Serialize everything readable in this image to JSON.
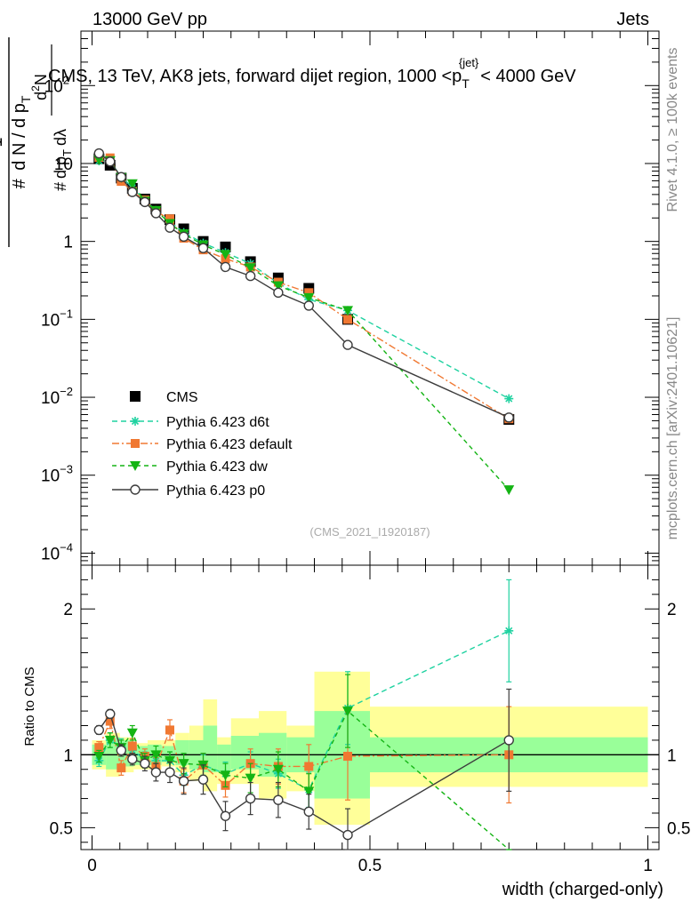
{
  "header": {
    "energy": "13000 GeV pp",
    "process": "Jets"
  },
  "side": {
    "rivet": "Rivet 4.1.0, ≥ 100k events",
    "mcplots": "mcplots.cern.ch [arXiv:2401.10621]"
  },
  "chart_data": {
    "type": "line",
    "title": "CMS, 13 TeV, AK8 jets, forward dijet region, 1000 <p_T^{jet}< 4000 GeV",
    "title_parts": {
      "main": "CMS, 13 TeV, AK8 jets, forward dijet region, 1000 <p",
      "sub": "T",
      "sup": "{jet}",
      "tail": "< 4000 GeV"
    },
    "ylabel_parts": {
      "hash": "#",
      "one": "1",
      "dN": "d N / d p",
      "sub": "T",
      "top_hash": "#",
      "top": "d",
      "top_sup": "2",
      "top_N": "N",
      "bot_dp": "d p",
      "bot_sub": "T",
      "bot_dl": "dλ"
    },
    "xlabel": "width (charged-only)",
    "ratio_ylabel": "Ratio to CMS",
    "dataset_id": "(CMS_2021_I1920187)",
    "xlim": [
      -0.02,
      1.02
    ],
    "main_ylim": [
      7e-05,
      500
    ],
    "ratio_ylim": [
      0.35,
      2.3
    ],
    "x_ticks": [
      "0",
      "0.5",
      "1"
    ],
    "x_tick_values": [
      0,
      0.5,
      1
    ],
    "main_y_ticks": [
      {
        "v": 100,
        "label": "10",
        "sup": "2"
      },
      {
        "v": 10,
        "label": "10",
        "sup": ""
      },
      {
        "v": 1,
        "label": "1",
        "sup": ""
      },
      {
        "v": 0.1,
        "label": "10",
        "sup": "−1"
      },
      {
        "v": 0.01,
        "label": "10",
        "sup": "−2"
      },
      {
        "v": 0.001,
        "label": "10",
        "sup": "−3"
      },
      {
        "v": 0.0001,
        "label": "10",
        "sup": "−4"
      }
    ],
    "ratio_y_ticks": [
      {
        "v": 2,
        "label": "2"
      },
      {
        "v": 1,
        "label": "1"
      },
      {
        "v": 0.5,
        "label": "0.5"
      }
    ],
    "bin_edges": [
      0,
      0.025,
      0.05,
      0.075,
      0.1,
      0.125,
      0.15,
      0.175,
      0.2,
      0.225,
      0.25,
      0.3,
      0.35,
      0.4,
      0.5,
      1.0
    ],
    "bin_centers": [
      0.0125,
      0.0375,
      0.0625,
      0.0875,
      0.1125,
      0.1375,
      0.1625,
      0.1875,
      0.2125,
      0.2375,
      0.275,
      0.325,
      0.375,
      0.45,
      0.75
    ],
    "data_x": [
      0.0125,
      0.0325,
      0.0525,
      0.0725,
      0.095,
      0.115,
      0.14,
      0.165,
      0.2,
      0.24,
      0.285,
      0.335,
      0.39,
      0.46,
      0.75
    ],
    "cms": [
      11.5,
      9.5,
      6.5,
      4.8,
      3.5,
      2.6,
      1.9,
      1.45,
      1.0,
      0.85,
      0.55,
      0.34,
      0.25,
      0.1,
      0.0052
    ],
    "ratio_bands": {
      "green": [
        [
          0.93,
          1.07
        ],
        [
          0.9,
          1.12
        ],
        [
          0.92,
          1.1
        ],
        [
          0.93,
          1.06
        ],
        [
          0.93,
          1.07
        ],
        [
          0.95,
          1.06
        ],
        [
          0.93,
          1.1
        ],
        [
          0.9,
          1.1
        ],
        [
          0.88,
          1.2
        ],
        [
          0.88,
          1.07
        ],
        [
          0.9,
          1.13
        ],
        [
          0.85,
          1.15
        ],
        [
          0.88,
          1.12
        ],
        [
          0.7,
          1.3
        ],
        [
          0.88,
          1.12
        ]
      ],
      "yellow": [
        [
          0.9,
          1.1
        ],
        [
          0.85,
          1.15
        ],
        [
          0.88,
          1.12
        ],
        [
          0.9,
          1.08
        ],
        [
          0.9,
          1.1
        ],
        [
          0.92,
          1.1
        ],
        [
          0.88,
          1.15
        ],
        [
          0.82,
          1.2
        ],
        [
          0.75,
          1.38
        ],
        [
          0.8,
          1.12
        ],
        [
          0.8,
          1.25
        ],
        [
          0.7,
          1.3
        ],
        [
          0.75,
          1.2
        ],
        [
          0.52,
          1.57
        ],
        [
          0.78,
          1.33
        ]
      ]
    },
    "series": [
      {
        "name": "CMS",
        "legend": "CMS",
        "color": "#000000",
        "values": [
          11.5,
          9.5,
          6.5,
          4.8,
          3.5,
          2.6,
          1.9,
          1.45,
          1.0,
          0.85,
          0.55,
          0.34,
          0.25,
          0.1,
          0.0052
        ]
      },
      {
        "name": "Pythia 6.423 d6t",
        "legend": "Pythia 6.423 d6t",
        "color": "#1ed2a0",
        "marker": "star",
        "dash": "6,4",
        "values": [
          10.8,
          10.5,
          6.8,
          4.9,
          3.4,
          2.5,
          1.8,
          1.3,
          0.95,
          0.72,
          0.52,
          0.29,
          0.18,
          0.13,
          0.0096
        ],
        "ratio": [
          0.96,
          1.1,
          1.06,
          1.03,
          0.97,
          0.96,
          0.96,
          0.86,
          0.93,
          0.87,
          0.94,
          0.87,
          0.76,
          1.32,
          1.85
        ],
        "ratio_err": [
          0.04,
          0.05,
          0.05,
          0.05,
          0.05,
          0.06,
          0.06,
          0.07,
          0.07,
          0.08,
          0.08,
          0.1,
          0.12,
          0.25,
          0.35
        ]
      },
      {
        "name": "Pythia 6.423 default",
        "legend": "Pythia 6.423 default",
        "color": "#f07832",
        "marker": "square",
        "dash": "8,3,2,3",
        "values": [
          12.0,
          11.8,
          5.9,
          4.4,
          3.4,
          2.4,
          1.95,
          1.1,
          0.78,
          0.6,
          0.47,
          0.3,
          0.22,
          0.1,
          0.0053
        ],
        "ratio": [
          1.05,
          1.23,
          0.91,
          1.06,
          0.99,
          0.92,
          1.17,
          0.82,
          0.93,
          0.79,
          0.94,
          0.92,
          0.92,
          0.99,
          1.0
        ],
        "ratio_err": [
          0.04,
          0.05,
          0.05,
          0.05,
          0.05,
          0.06,
          0.07,
          0.08,
          0.08,
          0.08,
          0.1,
          0.12,
          0.15,
          0.3,
          0.33
        ]
      },
      {
        "name": "Pythia 6.423 dw",
        "legend": "Pythia 6.423 dw",
        "color": "#14b414",
        "marker": "triangle-down",
        "dash": "5,4",
        "values": [
          11.2,
          10.9,
          6.6,
          5.5,
          3.3,
          2.5,
          1.7,
          1.25,
          0.9,
          0.68,
          0.46,
          0.27,
          0.19,
          0.13,
          0.00065
        ],
        "ratio": [
          0.99,
          1.1,
          1.05,
          1.15,
          0.96,
          1.0,
          0.96,
          0.94,
          0.93,
          0.86,
          0.84,
          0.9,
          0.75,
          1.3,
          0.14
        ],
        "ratio_err": [
          0.04,
          0.05,
          0.05,
          0.05,
          0.05,
          0.06,
          0.06,
          0.07,
          0.08,
          0.08,
          0.1,
          0.12,
          0.12,
          0.25,
          0.15
        ]
      },
      {
        "name": "Pythia 6.423 p0",
        "legend": "Pythia 6.423 p0",
        "color": "#3c3c3c",
        "marker": "circle-open",
        "dash": "",
        "values": [
          13.5,
          10.6,
          6.7,
          4.3,
          3.2,
          2.3,
          1.5,
          1.15,
          0.82,
          0.47,
          0.36,
          0.22,
          0.15,
          0.047,
          0.0055
        ],
        "ratio": [
          1.17,
          1.28,
          1.03,
          0.97,
          0.94,
          0.88,
          0.88,
          0.82,
          0.83,
          0.58,
          0.7,
          0.69,
          0.61,
          0.45,
          1.1
        ],
        "ratio_err": [
          0.03,
          0.03,
          0.04,
          0.04,
          0.05,
          0.06,
          0.07,
          0.09,
          0.1,
          0.1,
          0.11,
          0.12,
          0.12,
          0.18,
          0.35
        ]
      }
    ]
  }
}
